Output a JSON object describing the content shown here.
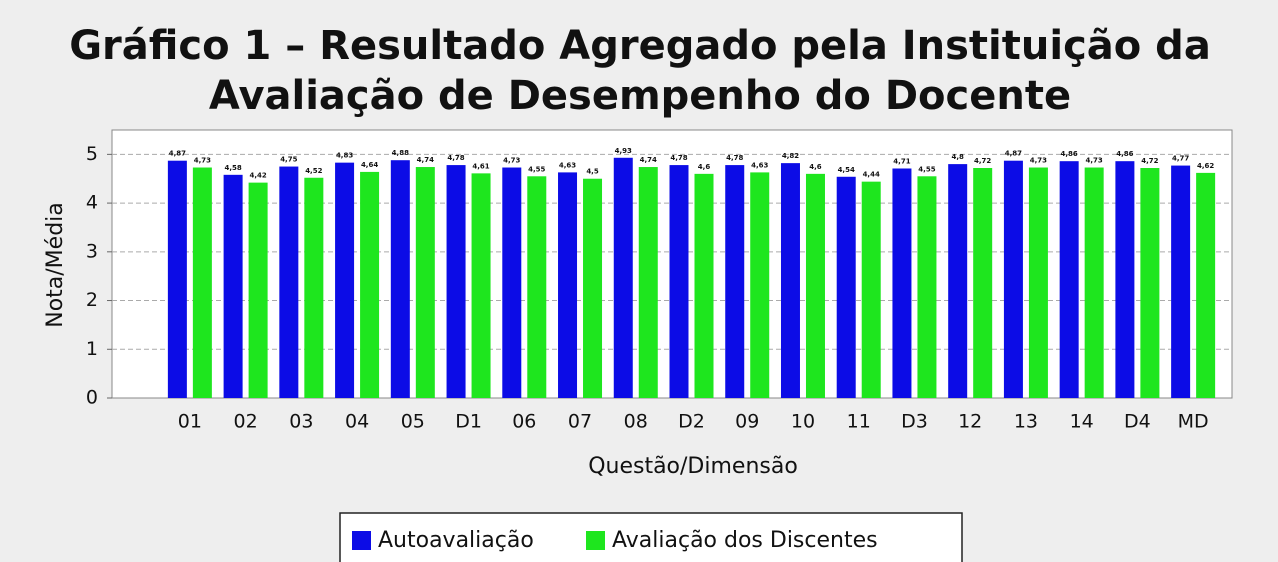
{
  "chart_data": {
    "type": "bar",
    "title": [
      "Gráfico 1 – Resultado Agregado pela Instituição da",
      "Avaliação de Desempenho do Docente"
    ],
    "x_label": "Questão/Dimensão",
    "y_label": "Nota/Média",
    "categories": [
      "01",
      "02",
      "03",
      "04",
      "05",
      "D1",
      "06",
      "07",
      "08",
      "D2",
      "09",
      "10",
      "11",
      "D3",
      "12",
      "13",
      "14",
      "D4",
      "MD"
    ],
    "series": [
      {
        "name": "Autoavaliação",
        "color": "#0c0ce6",
        "values": [
          4.87,
          4.58,
          4.75,
          4.83,
          4.88,
          4.78,
          4.73,
          4.63,
          4.93,
          4.78,
          4.78,
          4.82,
          4.54,
          4.71,
          4.8,
          4.87,
          4.86,
          4.86,
          4.77
        ],
        "value_labels": [
          "4,87",
          "4,58",
          "4,75",
          "4,83",
          "4,88",
          "4,78",
          "4,73",
          "4,63",
          "4,93",
          "4,78",
          "4,78",
          "4,82",
          "4,54",
          "4,71",
          "4,8",
          "4,87",
          "4,86",
          "4,86",
          "4,77"
        ]
      },
      {
        "name": "Avaliação dos Discentes",
        "color": "#1ee61e",
        "values": [
          4.73,
          4.42,
          4.52,
          4.64,
          4.74,
          4.61,
          4.55,
          4.5,
          4.74,
          4.6,
          4.63,
          4.6,
          4.44,
          4.55,
          4.72,
          4.73,
          4.73,
          4.72,
          4.62
        ],
        "value_labels": [
          "4,73",
          "4,42",
          "4,52",
          "4,64",
          "4,74",
          "4,61",
          "4,55",
          "4,5",
          "4,74",
          "4,6",
          "4,63",
          "4,6",
          "4,44",
          "4,55",
          "4,72",
          "4,73",
          "4,73",
          "4,72",
          "4,62"
        ]
      }
    ],
    "ylim": [
      0,
      5.5
    ],
    "yticks": [
      0,
      1,
      2,
      3,
      4,
      5
    ],
    "grid": true
  }
}
